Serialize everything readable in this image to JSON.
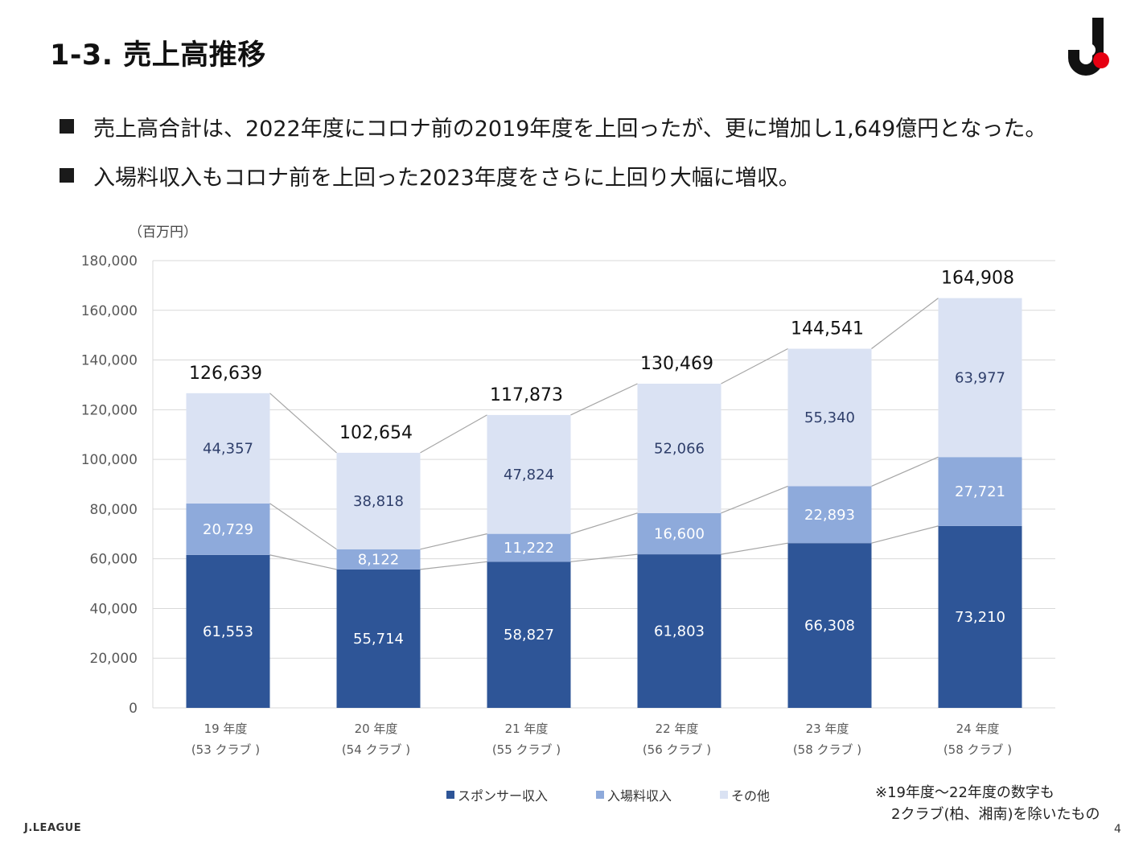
{
  "page": {
    "title": "1-3. 売上高推移",
    "bullets": [
      "売上高合計は、2022年度にコロナ前の2019年度を上回ったが、更に増加し1,649億円となった。",
      "入場料収入もコロナ前を上回った2023年度をさらに上回り大幅に増収。"
    ],
    "note_line1": "※19年度～22年度の数字も",
    "note_line2": "2クラブ(柏、湘南)を除いたもの",
    "footer_logo": "J.LEAGUE",
    "page_number": "4"
  },
  "chart_data": {
    "type": "bar",
    "stacked": true,
    "unit_label": "（百万円）",
    "categories": [
      "19 年度",
      "20 年度",
      "21 年度",
      "22 年度",
      "23 年度",
      "24 年度"
    ],
    "category_sublabels": [
      "(53 クラブ )",
      "(54 クラブ )",
      "(55 クラブ )",
      "(56 クラブ )",
      "(58 クラブ )",
      "(58 クラブ )"
    ],
    "series": [
      {
        "name": "スポンサー収入",
        "color": "#2e5597",
        "label_color": "#ffffff",
        "values": [
          61553,
          55714,
          58827,
          61803,
          66308,
          73210
        ]
      },
      {
        "name": "入場料収入",
        "color": "#8eaadb",
        "label_color": "#ffffff",
        "values": [
          20729,
          8122,
          11222,
          16600,
          22893,
          27721
        ]
      },
      {
        "name": "その他",
        "color": "#dae2f3",
        "label_color": "#2f3f6b",
        "values": [
          44357,
          38818,
          47824,
          52066,
          55340,
          63977
        ]
      }
    ],
    "totals": [
      126639,
      102654,
      117873,
      130469,
      144541,
      164908
    ],
    "ylim": [
      0,
      180000
    ],
    "yticks": [
      0,
      20000,
      40000,
      60000,
      80000,
      100000,
      120000,
      140000,
      160000,
      180000
    ],
    "grid": true,
    "legend_position": "bottom",
    "connector_color": "#a6a6a6"
  }
}
